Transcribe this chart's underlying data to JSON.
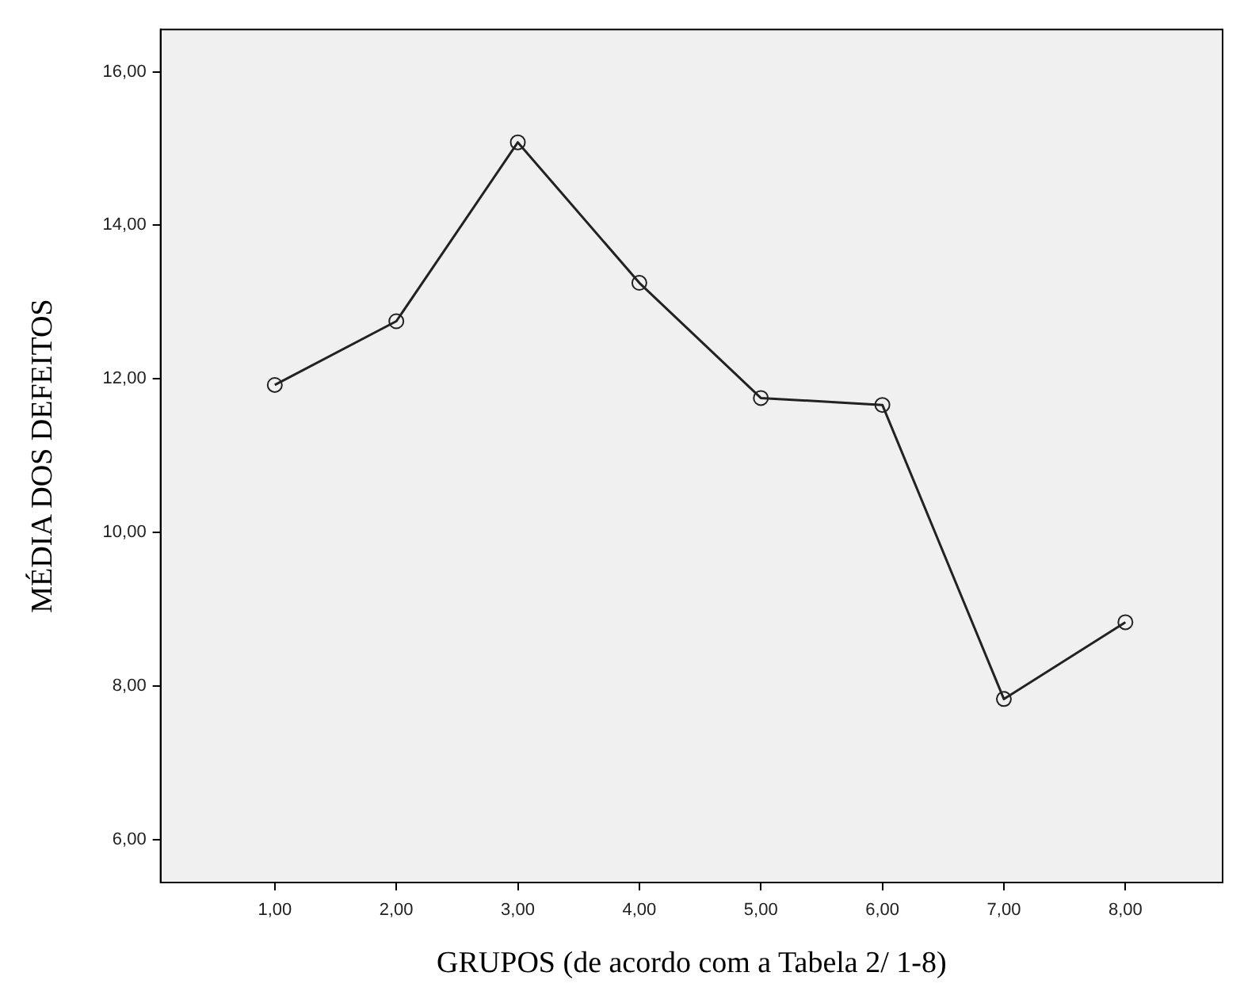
{
  "chart_data": {
    "type": "line",
    "xlabel": "GRUPOS (de acordo com a Tabela 2/ 1-8)",
    "ylabel": "MÉDIA DOS DEFEITOS",
    "x": [
      1,
      2,
      3,
      4,
      5,
      6,
      7,
      8
    ],
    "series": [
      {
        "color": "#222222",
        "values": [
          11.92,
          12.75,
          15.08,
          13.25,
          11.75,
          11.66,
          7.83,
          8.83
        ]
      }
    ],
    "xlim": [
      0.06,
      8.8
    ],
    "xticks": [
      {
        "value": 1,
        "label": "1,00"
      },
      {
        "value": 2,
        "label": "2,00"
      },
      {
        "value": 3,
        "label": "3,00"
      },
      {
        "value": 4,
        "label": "4,00"
      },
      {
        "value": 5,
        "label": "5,00"
      },
      {
        "value": 6,
        "label": "6,00"
      },
      {
        "value": 7,
        "label": "7,00"
      },
      {
        "value": 8,
        "label": "8,00"
      }
    ],
    "ylim": [
      5.44,
      16.55
    ],
    "yticks": [
      {
        "value": 6,
        "label": "6,00"
      },
      {
        "value": 8,
        "label": "8,00"
      },
      {
        "value": 10,
        "label": "10,00"
      },
      {
        "value": 12,
        "label": "12,00"
      },
      {
        "value": 14,
        "label": "14,00"
      },
      {
        "value": 16,
        "label": "16,00"
      }
    ],
    "grid": false,
    "legend": false,
    "marker": "circle",
    "line_style": "solid"
  }
}
